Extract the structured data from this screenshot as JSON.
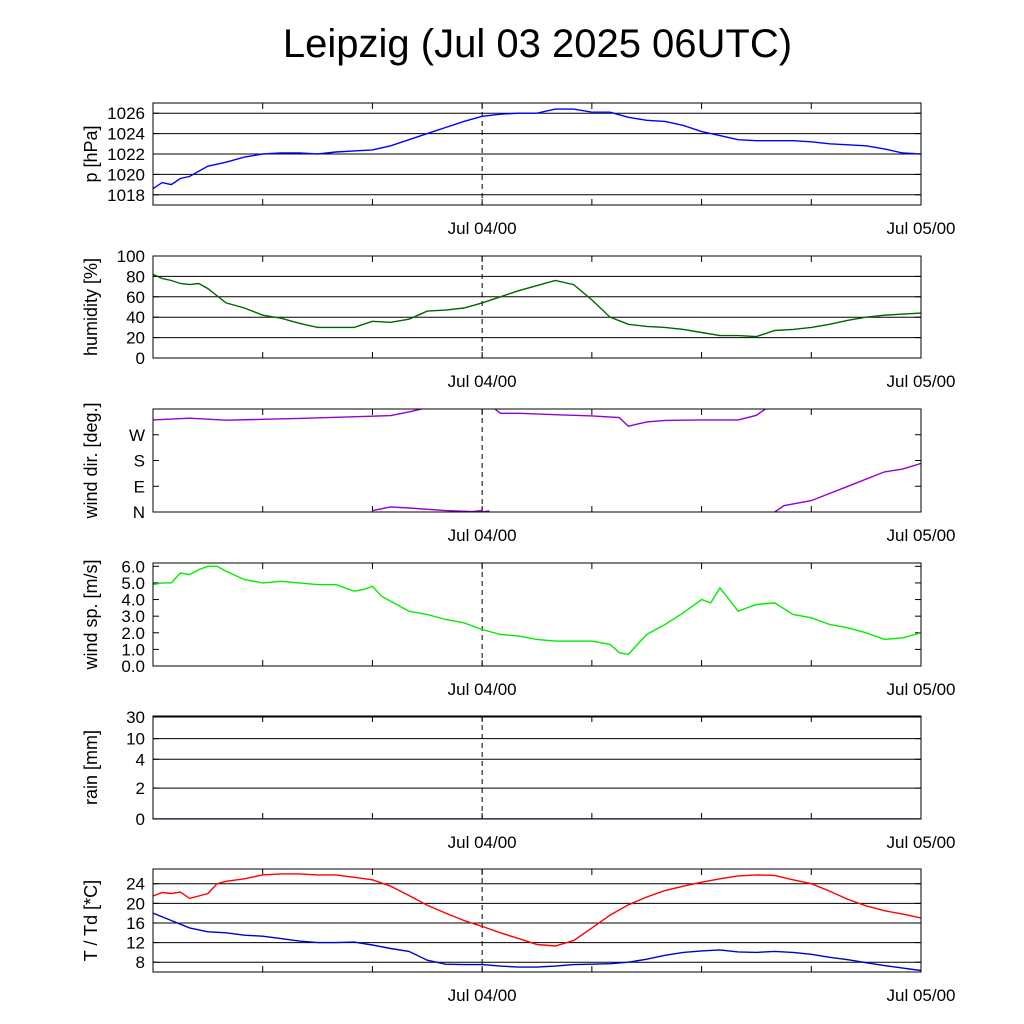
{
  "title": "Leipzig (Jul 03 2025 06UTC)",
  "x_axis": {
    "tick_labels": [
      "Jul 04/00",
      "Jul 05/00"
    ],
    "tick_hours": [
      18,
      42
    ],
    "range_hours": [
      0,
      42
    ],
    "marker_label": "Jul 04/00"
  },
  "chart_data": [
    {
      "type": "line",
      "id": "pressure",
      "ylabel": "p [hPa]",
      "ylim": [
        1017,
        1027
      ],
      "yticks": [
        1018,
        1020,
        1022,
        1024,
        1026
      ],
      "ytick_labels": [
        "1018",
        "1020",
        "1022",
        "1024",
        "1026"
      ],
      "grid": true,
      "series": [
        {
          "color": "#0000ff",
          "x": [
            0,
            0.5,
            1,
            1.5,
            2,
            3,
            3.5,
            4,
            5,
            6,
            7,
            8,
            9,
            10,
            11,
            12,
            13,
            14,
            15,
            16,
            17,
            18,
            19,
            20,
            21,
            22,
            23,
            24,
            25,
            26,
            27,
            28,
            29,
            30,
            31,
            32,
            33,
            34,
            35,
            36,
            37,
            38,
            39,
            40,
            41,
            42
          ],
          "y": [
            1018.6,
            1019.2,
            1019.0,
            1019.6,
            1019.8,
            1020.8,
            1021.0,
            1021.2,
            1021.7,
            1022.0,
            1022.1,
            1022.1,
            1022.0,
            1022.2,
            1022.3,
            1022.4,
            1022.8,
            1023.4,
            1024.0,
            1024.6,
            1025.2,
            1025.7,
            1025.9,
            1026.0,
            1026.0,
            1026.4,
            1026.4,
            1026.1,
            1026.1,
            1025.6,
            1025.3,
            1025.2,
            1024.8,
            1024.2,
            1023.8,
            1023.4,
            1023.3,
            1023.3,
            1023.3,
            1023.2,
            1023.0,
            1022.9,
            1022.8,
            1022.5,
            1022.1,
            1022.0
          ]
        }
      ]
    },
    {
      "type": "line",
      "id": "humidity",
      "ylabel": "humidity [%]",
      "ylim": [
        0,
        100
      ],
      "yticks": [
        0,
        20,
        40,
        60,
        80,
        100
      ],
      "ytick_labels": [
        "0",
        "20",
        "40",
        "60",
        "80",
        "100"
      ],
      "grid": true,
      "series": [
        {
          "color": "#006400",
          "x": [
            0,
            0.5,
            1,
            1.5,
            2,
            2.5,
            3,
            4,
            5,
            6,
            7,
            8,
            9,
            10,
            11,
            12,
            13,
            14,
            15,
            16,
            17,
            18,
            19,
            20,
            21,
            22,
            23,
            24,
            25,
            26,
            27,
            28,
            29,
            30,
            31,
            32,
            33,
            34,
            35,
            36,
            37,
            38,
            39,
            40,
            41,
            42
          ],
          "y": [
            82,
            78,
            76,
            73,
            72,
            73,
            68,
            54,
            49,
            42,
            39,
            34,
            30,
            30,
            30,
            36,
            35,
            38,
            46,
            47,
            49,
            54,
            60,
            66,
            71,
            76,
            72,
            57,
            40,
            33,
            31,
            30,
            28,
            25,
            22,
            22,
            21,
            27,
            28,
            30,
            33,
            37,
            40,
            42,
            43,
            44
          ]
        }
      ]
    },
    {
      "type": "line",
      "id": "wind_direction",
      "ylabel": "wind dir. [deg.]",
      "ylim": [
        0,
        360
      ],
      "yticks": [
        0,
        90,
        180,
        270
      ],
      "ytick_labels": [
        "N",
        "E",
        "S",
        "W"
      ],
      "grid": false,
      "series": [
        {
          "color": "#9400d3",
          "x": [
            0,
            2,
            4,
            6,
            8,
            10,
            12,
            13,
            14,
            15
          ],
          "y": [
            322,
            328,
            321,
            324,
            327,
            331,
            335,
            337,
            350,
            365
          ]
        },
        {
          "color": "#9400d3",
          "x": [
            12,
            13,
            14,
            16,
            18,
            18.4
          ],
          "y": [
            5,
            18,
            14,
            5,
            0,
            4
          ]
        },
        {
          "color": "#9400d3",
          "x": [
            17.5,
            18
          ],
          "y": [
            2,
            5
          ]
        },
        {
          "color": "#9400d3",
          "x": [
            18.5,
            19,
            20,
            22,
            24,
            25.5,
            26,
            27,
            28,
            30,
            32,
            33,
            33.6
          ],
          "y": [
            370,
            345,
            345,
            340,
            336,
            330,
            300,
            315,
            320,
            322,
            322,
            338,
            365
          ]
        },
        {
          "color": "#9400d3",
          "x": [
            34,
            34.5,
            36,
            38,
            40,
            41,
            42
          ],
          "y": [
            0,
            22,
            40,
            90,
            140,
            150,
            170
          ]
        }
      ]
    },
    {
      "type": "line",
      "id": "wind_speed",
      "ylabel": "wind sp. [m/s]",
      "ylim": [
        0,
        6.2
      ],
      "yticks": [
        0,
        1,
        2,
        3,
        4,
        5,
        6
      ],
      "ytick_labels": [
        "0.0",
        "1.0",
        "2.0",
        "3.0",
        "4.0",
        "5.0",
        "6.0"
      ],
      "grid": false,
      "series": [
        {
          "color": "#00ee00",
          "x": [
            0,
            0.5,
            1,
            1.5,
            2,
            2.5,
            3,
            3.5,
            4,
            5,
            6,
            7,
            8,
            9,
            10,
            11,
            11.5,
            12,
            12.5,
            13,
            14,
            15,
            16,
            17,
            18,
            19,
            20,
            21,
            22,
            23,
            24,
            25,
            25.5,
            26,
            27,
            28,
            29,
            30,
            30.5,
            31,
            31.5,
            32,
            33,
            34,
            35,
            36,
            37,
            38,
            39,
            40,
            41,
            42
          ],
          "y": [
            4.9,
            5.0,
            5.0,
            5.6,
            5.5,
            5.8,
            6.0,
            6.0,
            5.7,
            5.2,
            5.0,
            5.1,
            5.0,
            4.9,
            4.9,
            4.5,
            4.6,
            4.8,
            4.2,
            3.9,
            3.3,
            3.1,
            2.8,
            2.6,
            2.2,
            1.9,
            1.8,
            1.6,
            1.5,
            1.5,
            1.5,
            1.3,
            0.8,
            0.7,
            1.9,
            2.5,
            3.2,
            4.0,
            3.8,
            4.7,
            4.0,
            3.3,
            3.7,
            3.8,
            3.1,
            2.9,
            2.5,
            2.3,
            2.0,
            1.6,
            1.7,
            2.0
          ]
        }
      ]
    },
    {
      "type": "line",
      "id": "rain",
      "ylabel": "rain [mm]",
      "ytick_values": [
        0,
        2,
        4,
        10,
        30
      ],
      "ytick_labels": [
        "0",
        "2",
        "4",
        "10",
        "30"
      ],
      "grid": true,
      "series": [
        {
          "color": "#0000aa",
          "x": [
            0,
            42
          ],
          "y": [
            0,
            0
          ]
        }
      ]
    },
    {
      "type": "line",
      "id": "temperature",
      "ylabel": "T / Td [*C]",
      "ylim": [
        6,
        27
      ],
      "yticks": [
        8,
        12,
        16,
        20,
        24
      ],
      "ytick_labels": [
        "8",
        "12",
        "16",
        "20",
        "24"
      ],
      "grid": true,
      "series": [
        {
          "color": "#ff0000",
          "x": [
            0,
            0.5,
            1,
            1.5,
            2,
            2.5,
            3,
            3.5,
            4,
            5,
            6,
            7,
            8,
            9,
            10,
            11,
            12,
            13,
            14,
            15,
            16,
            17,
            18,
            19,
            20,
            21,
            22,
            23,
            24,
            25,
            26,
            27,
            28,
            29,
            30,
            31,
            32,
            33,
            34,
            35,
            36,
            37,
            38,
            39,
            40,
            41,
            42
          ],
          "y": [
            21.5,
            22.2,
            22.0,
            22.3,
            21.0,
            21.5,
            22.0,
            24.0,
            24.5,
            25.0,
            25.8,
            26.0,
            26.0,
            25.8,
            25.8,
            25.3,
            24.8,
            23.5,
            21.6,
            19.6,
            18.0,
            16.5,
            15.3,
            14.0,
            12.8,
            11.6,
            11.3,
            12.4,
            15.0,
            17.6,
            19.7,
            21.3,
            22.6,
            23.5,
            24.3,
            25.0,
            25.6,
            25.8,
            25.7,
            24.8,
            24.0,
            22.5,
            20.8,
            19.5,
            18.5,
            17.8,
            17.0
          ]
        },
        {
          "color": "#0000cc",
          "x": [
            0,
            1,
            2,
            3,
            4,
            5,
            6,
            7,
            8,
            9,
            10,
            11,
            12,
            13,
            14,
            15,
            16,
            17,
            18,
            19,
            20,
            21,
            22,
            23,
            24,
            25,
            26,
            27,
            28,
            29,
            30,
            31,
            32,
            33,
            34,
            35,
            36,
            37,
            38,
            39,
            40,
            41,
            42
          ],
          "y": [
            18.0,
            16.5,
            15.0,
            14.2,
            14.0,
            13.5,
            13.3,
            12.8,
            12.3,
            12.0,
            12.0,
            12.1,
            11.5,
            10.8,
            10.2,
            8.4,
            7.6,
            7.5,
            7.5,
            7.2,
            7.0,
            7.0,
            7.2,
            7.5,
            7.6,
            7.7,
            8.0,
            8.6,
            9.4,
            10.0,
            10.3,
            10.5,
            10.1,
            10.0,
            10.2,
            10.0,
            9.6,
            9.0,
            8.5,
            7.9,
            7.3,
            6.8,
            6.3
          ]
        }
      ]
    }
  ]
}
